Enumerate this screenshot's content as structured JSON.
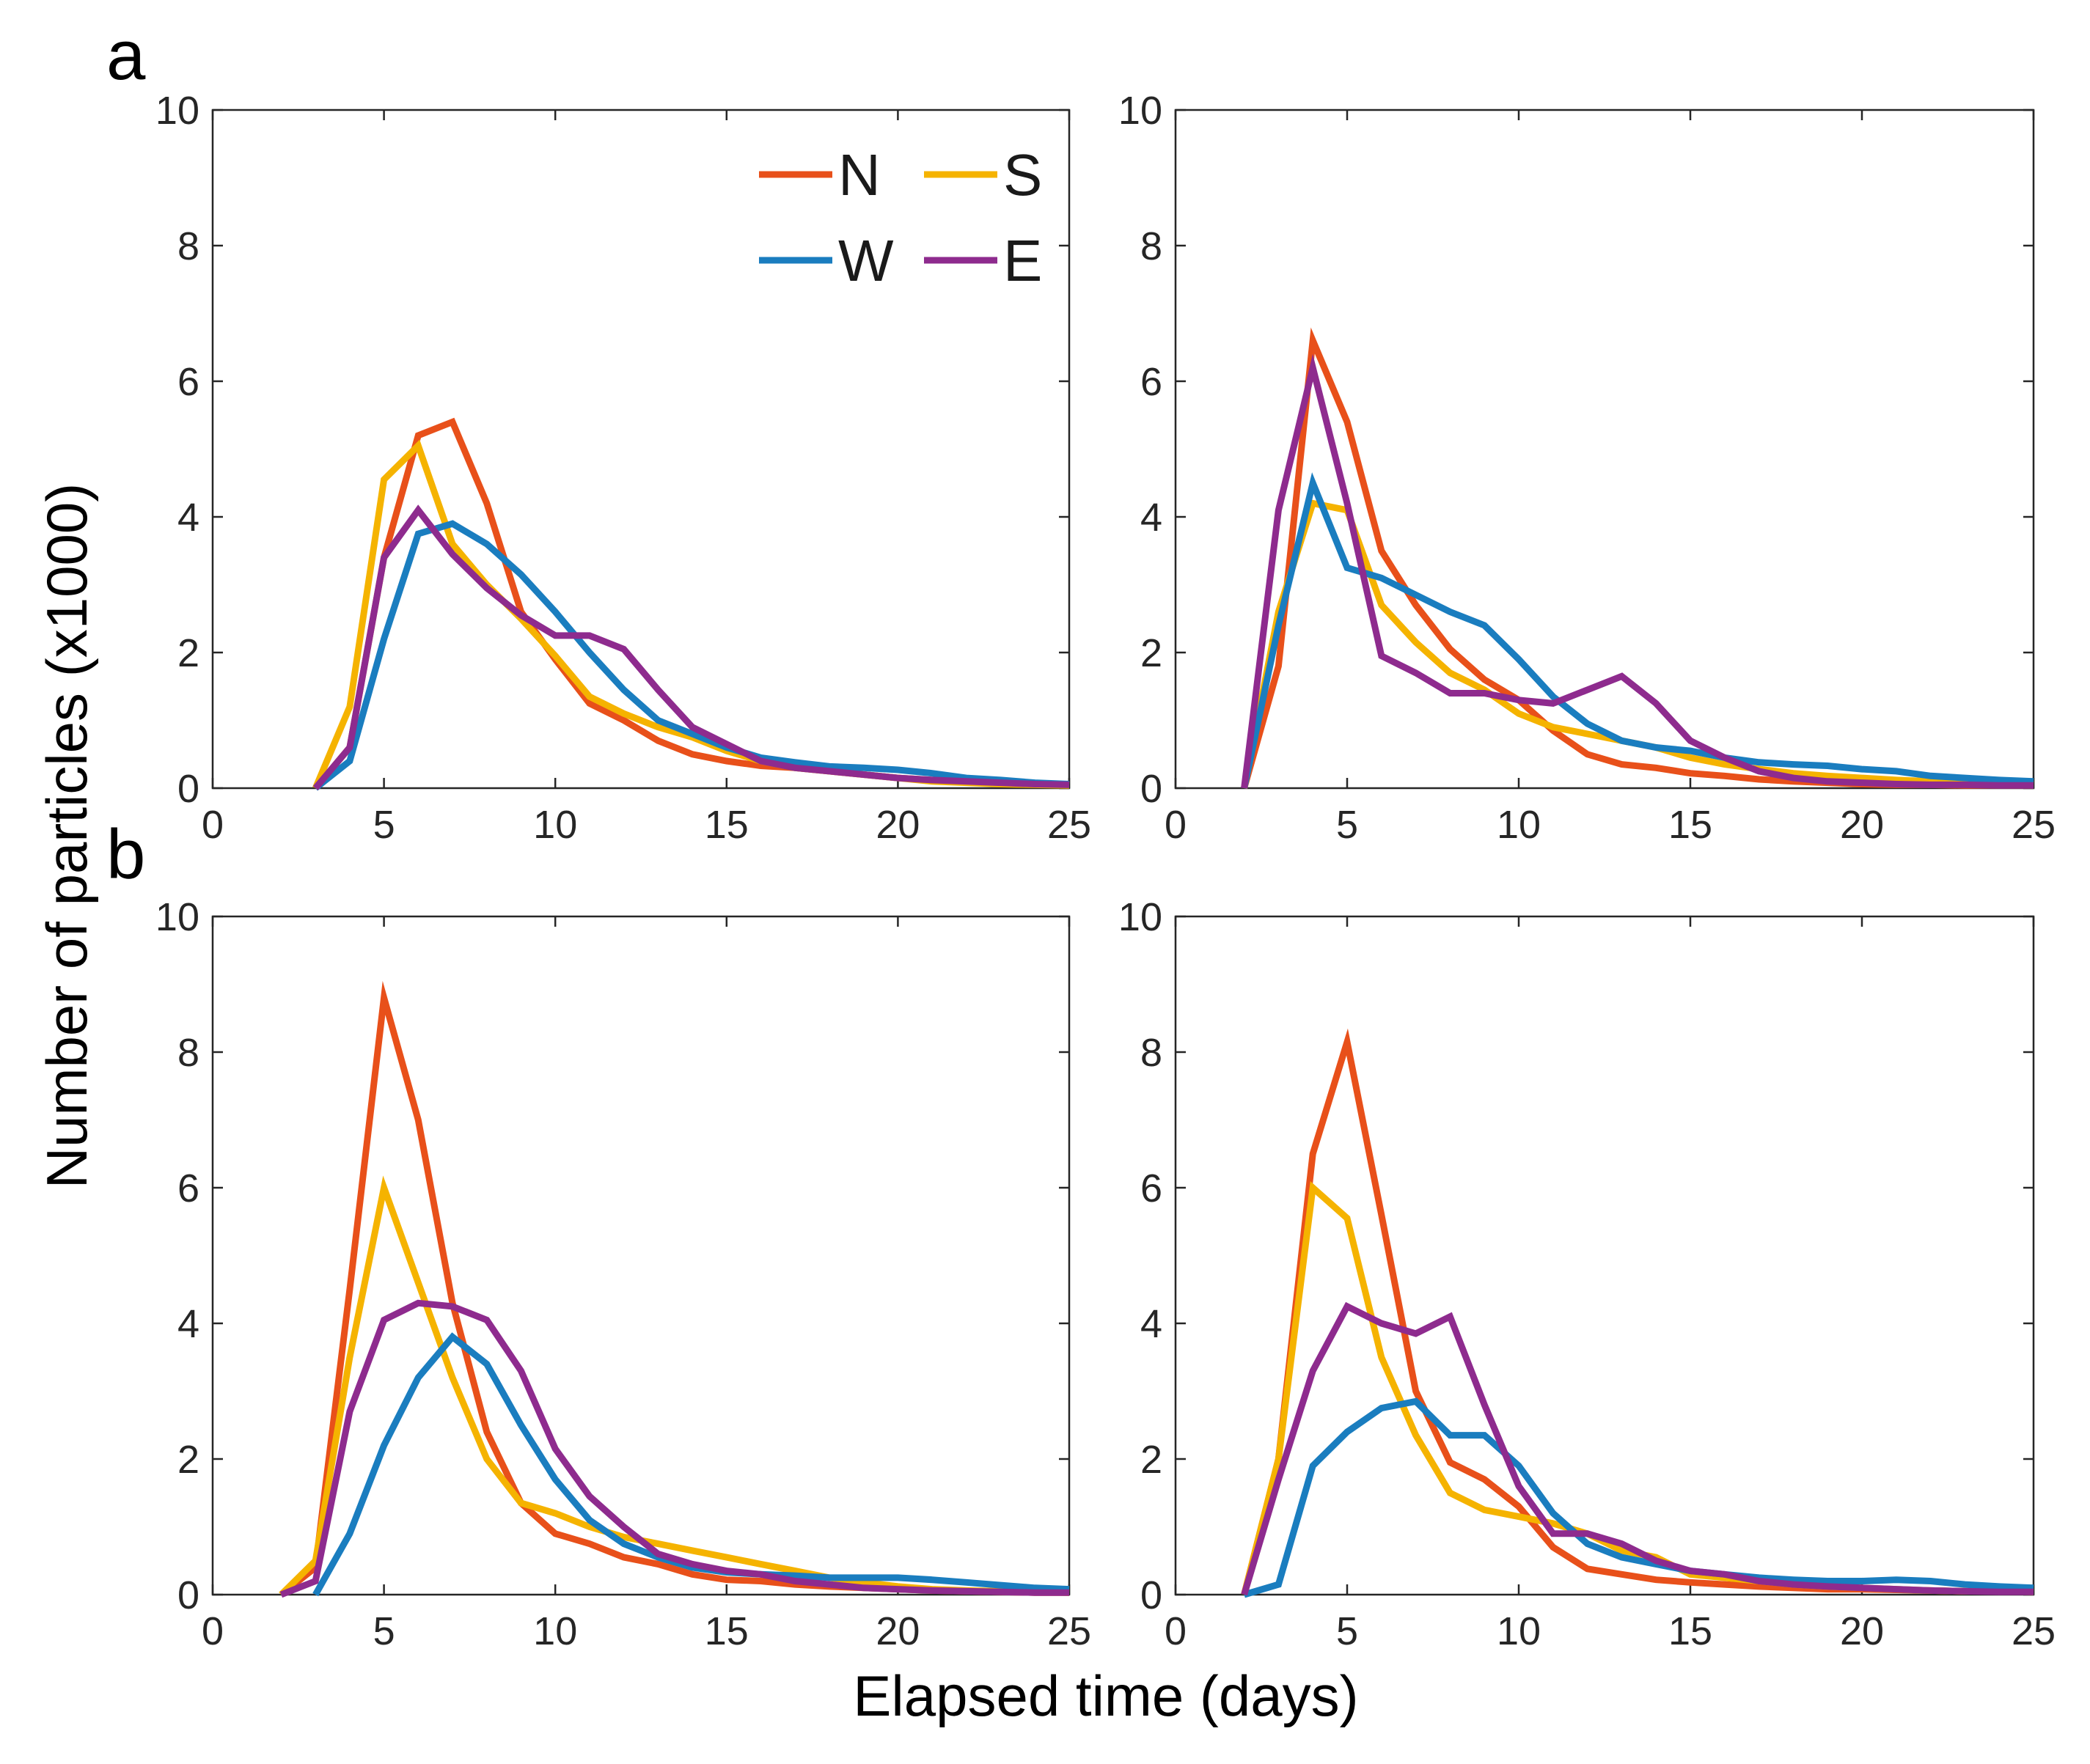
{
  "figure": {
    "panel_labels": [
      "a",
      "b"
    ],
    "ylabel": "Number of particles (x1000)",
    "xlabel": "Elapsed time (days)"
  },
  "legend": {
    "position": "top-right of first panel",
    "entries": [
      {
        "name": "N",
        "color": "#E8501A"
      },
      {
        "name": "S",
        "color": "#F5B300"
      },
      {
        "name": "W",
        "color": "#1A7DBF"
      },
      {
        "name": "E",
        "color": "#8E2B8E"
      }
    ]
  },
  "chart_data": [
    {
      "type": "line",
      "id": "a-left",
      "xlim": [
        0,
        25
      ],
      "ylim": [
        0,
        10
      ],
      "xticks": [
        0,
        5,
        10,
        15,
        20,
        25
      ],
      "yticks": [
        0,
        2,
        4,
        6,
        8,
        10
      ],
      "series": [
        {
          "name": "N",
          "color": "#E8501A",
          "x": [
            3,
            4,
            5,
            6,
            7,
            8,
            9,
            10,
            11,
            12,
            13,
            14,
            15,
            16,
            17,
            18,
            19,
            20,
            21,
            22,
            23,
            24,
            25
          ],
          "values": [
            0,
            0.6,
            3.4,
            5.2,
            5.4,
            4.2,
            2.6,
            1.9,
            1.25,
            1.0,
            0.7,
            0.5,
            0.4,
            0.33,
            0.3,
            0.25,
            0.2,
            0.15,
            0.12,
            0.1,
            0.08,
            0.06,
            0.05
          ]
        },
        {
          "name": "S",
          "color": "#F5B300",
          "x": [
            3,
            4,
            5,
            6,
            7,
            8,
            9,
            10,
            11,
            12,
            13,
            14,
            15,
            16,
            17,
            18,
            19,
            20,
            21,
            22,
            23,
            24,
            25
          ],
          "values": [
            0,
            1.2,
            4.55,
            5.05,
            3.6,
            3.0,
            2.5,
            1.95,
            1.35,
            1.1,
            0.9,
            0.75,
            0.55,
            0.4,
            0.3,
            0.25,
            0.2,
            0.15,
            0.1,
            0.08,
            0.06,
            0.05,
            0.04
          ]
        },
        {
          "name": "W",
          "color": "#1A7DBF",
          "x": [
            3,
            4,
            5,
            6,
            7,
            8,
            9,
            10,
            11,
            12,
            13,
            14,
            15,
            16,
            17,
            18,
            19,
            20,
            21,
            22,
            23,
            24,
            25
          ],
          "values": [
            0,
            0.4,
            2.2,
            3.75,
            3.9,
            3.6,
            3.15,
            2.6,
            2.0,
            1.45,
            1.0,
            0.8,
            0.6,
            0.45,
            0.38,
            0.32,
            0.3,
            0.27,
            0.22,
            0.15,
            0.12,
            0.08,
            0.06
          ]
        },
        {
          "name": "E",
          "color": "#8E2B8E",
          "x": [
            3,
            4,
            5,
            6,
            7,
            8,
            9,
            10,
            11,
            12,
            13,
            14,
            15,
            16,
            17,
            18,
            19,
            20,
            21,
            22,
            23,
            24,
            25
          ],
          "values": [
            0,
            0.6,
            3.4,
            4.1,
            3.45,
            2.95,
            2.55,
            2.25,
            2.25,
            2.05,
            1.45,
            0.9,
            0.65,
            0.4,
            0.3,
            0.25,
            0.2,
            0.15,
            0.12,
            0.1,
            0.08,
            0.06,
            0.05
          ]
        }
      ]
    },
    {
      "type": "line",
      "id": "a-right",
      "xlim": [
        0,
        25
      ],
      "ylim": [
        0,
        10
      ],
      "xticks": [
        0,
        5,
        10,
        15,
        20,
        25
      ],
      "yticks": [
        0,
        2,
        4,
        6,
        8,
        10
      ],
      "series": [
        {
          "name": "N",
          "color": "#E8501A",
          "x": [
            2,
            3,
            4,
            5,
            6,
            7,
            8,
            9,
            10,
            11,
            12,
            13,
            14,
            15,
            16,
            17,
            18,
            19,
            20,
            21,
            22,
            23,
            24,
            25
          ],
          "values": [
            0,
            1.8,
            6.6,
            5.4,
            3.5,
            2.7,
            2.05,
            1.6,
            1.3,
            0.85,
            0.5,
            0.35,
            0.3,
            0.22,
            0.18,
            0.13,
            0.1,
            0.08,
            0.06,
            0.05,
            0.05,
            0.04,
            0.04,
            0.04
          ]
        },
        {
          "name": "S",
          "color": "#F5B300",
          "x": [
            2,
            3,
            4,
            5,
            6,
            7,
            8,
            9,
            10,
            11,
            12,
            13,
            14,
            15,
            16,
            17,
            18,
            19,
            20,
            21,
            22,
            23,
            24,
            25
          ],
          "values": [
            0,
            2.6,
            4.2,
            4.1,
            2.7,
            2.15,
            1.7,
            1.45,
            1.1,
            0.9,
            0.8,
            0.7,
            0.6,
            0.45,
            0.35,
            0.28,
            0.22,
            0.18,
            0.15,
            0.12,
            0.1,
            0.08,
            0.07,
            0.06
          ]
        },
        {
          "name": "W",
          "color": "#1A7DBF",
          "x": [
            2,
            3,
            4,
            5,
            6,
            7,
            8,
            9,
            10,
            11,
            12,
            13,
            14,
            15,
            16,
            17,
            18,
            19,
            20,
            21,
            22,
            23,
            24,
            25
          ],
          "values": [
            0,
            2.4,
            4.5,
            3.25,
            3.1,
            2.85,
            2.6,
            2.4,
            1.9,
            1.35,
            0.95,
            0.7,
            0.6,
            0.55,
            0.45,
            0.38,
            0.35,
            0.33,
            0.28,
            0.25,
            0.18,
            0.15,
            0.12,
            0.1
          ]
        },
        {
          "name": "E",
          "color": "#8E2B8E",
          "x": [
            2,
            3,
            4,
            5,
            6,
            7,
            8,
            9,
            10,
            11,
            12,
            13,
            14,
            15,
            16,
            17,
            18,
            19,
            20,
            21,
            22,
            23,
            24,
            25
          ],
          "values": [
            0,
            4.1,
            6.2,
            4.2,
            1.95,
            1.7,
            1.4,
            1.4,
            1.3,
            1.25,
            1.45,
            1.65,
            1.25,
            0.7,
            0.45,
            0.25,
            0.15,
            0.1,
            0.08,
            0.06,
            0.05,
            0.05,
            0.04,
            0.04
          ]
        }
      ]
    },
    {
      "type": "line",
      "id": "b-left",
      "xlim": [
        0,
        25
      ],
      "ylim": [
        0,
        10
      ],
      "xticks": [
        0,
        5,
        10,
        15,
        20,
        25
      ],
      "yticks": [
        0,
        2,
        4,
        6,
        8,
        10
      ],
      "series": [
        {
          "name": "N",
          "color": "#E8501A",
          "x": [
            2,
            3,
            4,
            5,
            6,
            7,
            8,
            9,
            10,
            11,
            12,
            13,
            14,
            15,
            16,
            17,
            18,
            19,
            20,
            21,
            22,
            23,
            24,
            25
          ],
          "values": [
            0,
            0.4,
            4.5,
            8.8,
            7.0,
            4.3,
            2.4,
            1.35,
            0.9,
            0.75,
            0.55,
            0.45,
            0.3,
            0.22,
            0.2,
            0.15,
            0.12,
            0.1,
            0.08,
            0.06,
            0.05,
            0.04,
            0.03,
            0.03
          ]
        },
        {
          "name": "S",
          "color": "#F5B300",
          "x": [
            2,
            3,
            4,
            5,
            6,
            7,
            8,
            9,
            10,
            11,
            12,
            13,
            14,
            15,
            16,
            17,
            18,
            19,
            20,
            21,
            22,
            23,
            24,
            25
          ],
          "values": [
            0,
            0.5,
            3.5,
            6.0,
            4.6,
            3.2,
            2.0,
            1.35,
            1.2,
            1.0,
            0.85,
            0.75,
            0.65,
            0.55,
            0.45,
            0.35,
            0.25,
            0.18,
            0.12,
            0.08,
            0.06,
            0.05,
            0.04,
            0.03
          ]
        },
        {
          "name": "W",
          "color": "#1A7DBF",
          "x": [
            3,
            4,
            5,
            6,
            7,
            8,
            9,
            10,
            11,
            12,
            13,
            14,
            15,
            16,
            17,
            18,
            19,
            20,
            21,
            22,
            23,
            24,
            25
          ],
          "values": [
            0,
            0.9,
            2.2,
            3.2,
            3.8,
            3.4,
            2.5,
            1.7,
            1.1,
            0.75,
            0.55,
            0.4,
            0.33,
            0.3,
            0.28,
            0.25,
            0.25,
            0.25,
            0.22,
            0.18,
            0.14,
            0.1,
            0.08
          ]
        },
        {
          "name": "E",
          "color": "#8E2B8E",
          "x": [
            2,
            3,
            4,
            5,
            6,
            7,
            8,
            9,
            10,
            11,
            12,
            13,
            14,
            15,
            16,
            17,
            18,
            19,
            20,
            21,
            22,
            23,
            24,
            25
          ],
          "values": [
            0,
            0.2,
            2.7,
            4.05,
            4.3,
            4.25,
            4.05,
            3.3,
            2.15,
            1.45,
            1.0,
            0.6,
            0.45,
            0.35,
            0.3,
            0.2,
            0.15,
            0.1,
            0.08,
            0.06,
            0.05,
            0.04,
            0.03,
            0.03
          ]
        }
      ]
    },
    {
      "type": "line",
      "id": "b-right",
      "xlim": [
        0,
        25
      ],
      "ylim": [
        0,
        10
      ],
      "xticks": [
        0,
        5,
        10,
        15,
        20,
        25
      ],
      "yticks": [
        0,
        2,
        4,
        6,
        8,
        10
      ],
      "series": [
        {
          "name": "N",
          "color": "#E8501A",
          "x": [
            2,
            3,
            4,
            5,
            6,
            7,
            8,
            9,
            10,
            11,
            12,
            13,
            14,
            15,
            16,
            17,
            18,
            19,
            20,
            21,
            22,
            23,
            24,
            25
          ],
          "values": [
            0,
            2.0,
            6.5,
            8.15,
            5.6,
            3.0,
            1.95,
            1.7,
            1.3,
            0.7,
            0.38,
            0.3,
            0.22,
            0.18,
            0.15,
            0.12,
            0.1,
            0.08,
            0.08,
            0.07,
            0.06,
            0.05,
            0.05,
            0.05
          ]
        },
        {
          "name": "S",
          "color": "#F5B300",
          "x": [
            2,
            3,
            4,
            5,
            6,
            7,
            8,
            9,
            10,
            11,
            12,
            13,
            14,
            15,
            16,
            17,
            18,
            19,
            20,
            21,
            22,
            23,
            24,
            25
          ],
          "values": [
            0,
            2.0,
            6.0,
            5.55,
            3.5,
            2.35,
            1.5,
            1.25,
            1.15,
            1.05,
            0.9,
            0.65,
            0.55,
            0.3,
            0.25,
            0.2,
            0.15,
            0.12,
            0.1,
            0.08,
            0.06,
            0.05,
            0.05,
            0.04
          ]
        },
        {
          "name": "W",
          "color": "#1A7DBF",
          "x": [
            2,
            3,
            4,
            5,
            6,
            7,
            8,
            9,
            10,
            11,
            12,
            13,
            14,
            15,
            16,
            17,
            18,
            19,
            20,
            21,
            22,
            23,
            24,
            25
          ],
          "values": [
            0,
            0.15,
            1.9,
            2.4,
            2.75,
            2.85,
            2.35,
            2.35,
            1.9,
            1.2,
            0.75,
            0.55,
            0.45,
            0.35,
            0.3,
            0.25,
            0.22,
            0.2,
            0.2,
            0.22,
            0.2,
            0.15,
            0.12,
            0.1
          ]
        },
        {
          "name": "E",
          "color": "#8E2B8E",
          "x": [
            2,
            3,
            4,
            5,
            6,
            7,
            8,
            9,
            10,
            11,
            12,
            13,
            14,
            15,
            16,
            17,
            18,
            19,
            20,
            21,
            22,
            23,
            24,
            25
          ],
          "values": [
            0,
            1.7,
            3.3,
            4.25,
            4.0,
            3.85,
            4.1,
            2.8,
            1.6,
            0.9,
            0.9,
            0.75,
            0.5,
            0.35,
            0.3,
            0.2,
            0.15,
            0.12,
            0.1,
            0.08,
            0.06,
            0.05,
            0.04,
            0.04
          ]
        }
      ]
    }
  ]
}
